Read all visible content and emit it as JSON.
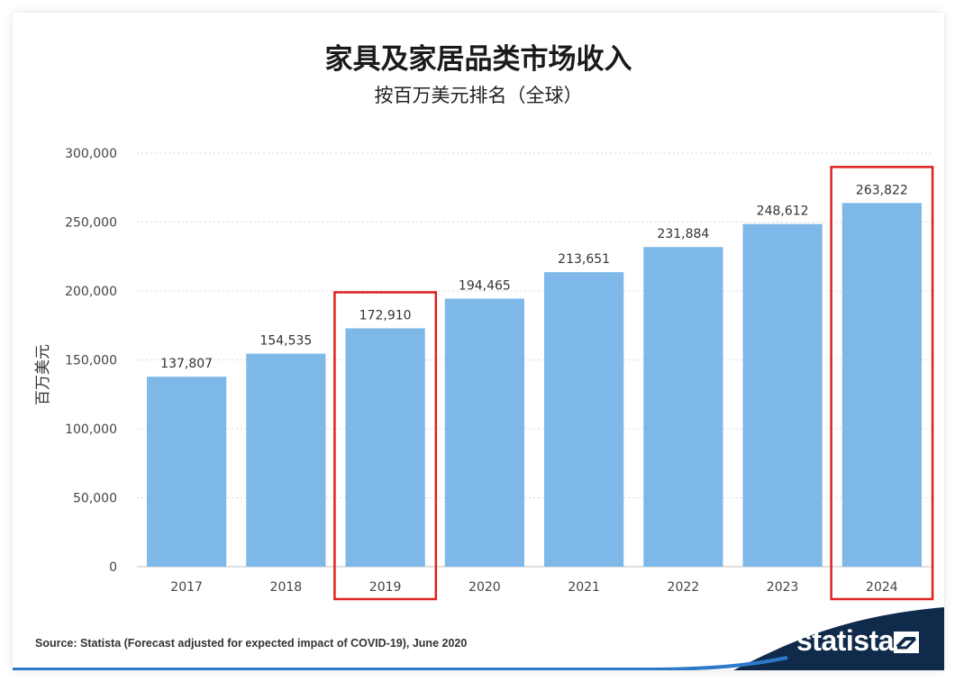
{
  "chart_data": {
    "type": "bar",
    "title": "家具及家居品类市场收入",
    "subtitle": "按百万美元排名（全球）",
    "ylabel": "百万美元",
    "xlabel": "",
    "categories": [
      "2017",
      "2018",
      "2019",
      "2020",
      "2021",
      "2022",
      "2023",
      "2024"
    ],
    "values": [
      137807,
      154535,
      172910,
      194465,
      213651,
      231884,
      248612,
      263822
    ],
    "value_labels": [
      "137,807",
      "154,535",
      "172,910",
      "194,465",
      "213,651",
      "231,884",
      "248,612",
      "263,822"
    ],
    "ylim": [
      0,
      300000
    ],
    "yticks": [
      0,
      50000,
      100000,
      150000,
      200000,
      250000,
      300000
    ],
    "ytick_labels": [
      "0",
      "50,000",
      "100,000",
      "150,000",
      "200,000",
      "250,000",
      "300,000"
    ],
    "grid": true,
    "bar_color": "#7db8e8",
    "highlighted_categories": [
      "2019",
      "2024"
    ],
    "highlight_color": "#e02020"
  },
  "footer": {
    "source": "Source: Statista (Forecast adjusted for expected impact of COVID-19), June 2020",
    "brand": "statista",
    "brand_bg": "#0f2a4a",
    "accent_line": "#2d79c7"
  }
}
